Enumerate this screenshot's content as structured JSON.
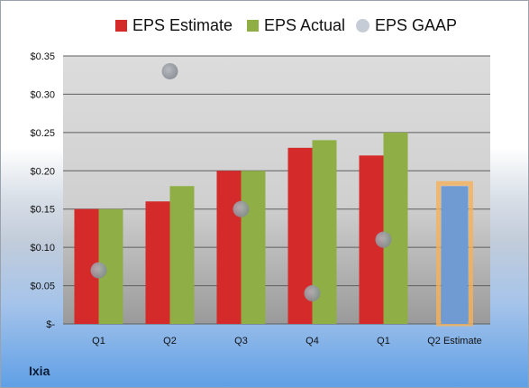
{
  "company": "Ixia",
  "legend": [
    {
      "label": "EPS Estimate",
      "color": "#d42a2a",
      "shape": "square"
    },
    {
      "label": "EPS Actual",
      "color": "#8faf46",
      "shape": "square"
    },
    {
      "label": "EPS GAAP",
      "color": "#c6ccd6",
      "shape": "circle"
    }
  ],
  "y_tick_labels": [
    "$-",
    "$0.05",
    "$0.10",
    "$0.15",
    "$0.20",
    "$0.25",
    "$0.30",
    "$0.35"
  ],
  "chart_data": {
    "type": "bar",
    "categories": [
      "Q1",
      "Q2",
      "Q3",
      "Q4",
      "Q1",
      "Q2 Estimate"
    ],
    "series": [
      {
        "name": "EPS Estimate",
        "values": [
          0.15,
          0.16,
          0.2,
          0.23,
          0.22,
          null
        ],
        "color": "#d42a2a"
      },
      {
        "name": "EPS Actual",
        "values": [
          0.15,
          0.18,
          0.2,
          0.24,
          0.25,
          null
        ],
        "color": "#8faf46"
      },
      {
        "name": "EPS GAAP",
        "type": "scatter",
        "values": [
          0.07,
          0.33,
          0.15,
          0.04,
          0.11,
          null
        ],
        "color": "#9aa0a8"
      }
    ],
    "forecast": {
      "category": "Q2 Estimate",
      "value": 0.18,
      "color": "#6f9ad2",
      "outline": "#f5b25a"
    },
    "ylim": [
      0,
      0.35
    ],
    "grid": true,
    "legend_position": "top"
  }
}
